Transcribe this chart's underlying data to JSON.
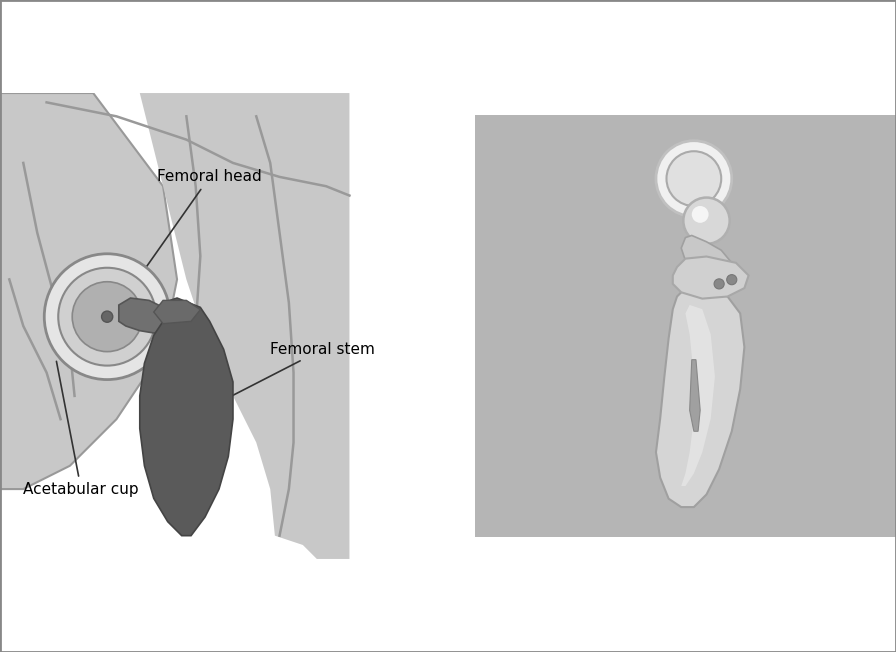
{
  "title": "",
  "bg_color_left": "#d4d4d4",
  "bg_color_right": "#c8c8c8",
  "label_femoral_head": "Femoral head",
  "label_femoral_stem": "Femoral stem",
  "label_acetabular_cup": "Acetabular cup",
  "label_fontsize": 11,
  "fig_width": 8.96,
  "fig_height": 6.52,
  "dpi": 100,
  "border_color": "#888888",
  "line_color": "#333333",
  "schematic_colors": {
    "background": "#d0d0d0",
    "bone_outline": "#a0a0a0",
    "cup_outer": "#e8e8e8",
    "cup_inner": "#c0c0c0",
    "cup_center": "#888888",
    "neck": "#707070",
    "stem": "#666666",
    "stem_dark": "#555555"
  },
  "photo_bg": "#b8b8b8"
}
